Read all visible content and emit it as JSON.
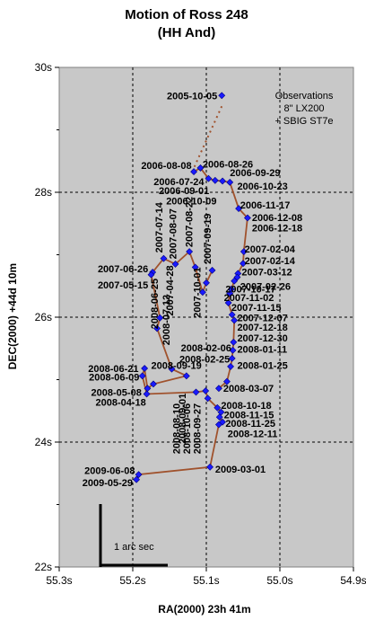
{
  "chart_data": {
    "type": "scatter",
    "title": [
      "Motion of Ross 248",
      "(HH And)"
    ],
    "xlabel": "RA(2000) 23h 41m",
    "ylabel": "DEC(2000) +44d 10m",
    "xlim": [
      55.3,
      54.9
    ],
    "ylim": [
      22,
      30
    ],
    "x_ticks": [
      55.3,
      55.2,
      55.1,
      55.0,
      54.9
    ],
    "x_tick_labels": [
      "55.3s",
      "55.2s",
      "55.1s",
      "55.0s",
      "54.9s"
    ],
    "y_ticks": [
      22,
      24,
      26,
      28,
      30
    ],
    "y_tick_labels": [
      "22s",
      "24s",
      "26s",
      "28s",
      "30s"
    ],
    "x_inverted": true,
    "grid": "dashed",
    "colors": {
      "plot_bg": "#c8c8c8",
      "point": "#1a1aff",
      "line": "#a0522d",
      "grid": "#000000"
    },
    "notes": [
      "Observations",
      "8\" LX200",
      "+ SBIG ST7e"
    ],
    "scale_bar_label": "1 arc sec",
    "series": [
      {
        "points": [
          {
            "x": 55.079,
            "y": 29.55
          },
          {
            "x": 55.117,
            "y": 28.33
          },
          {
            "x": 55.108,
            "y": 28.39
          },
          {
            "x": 55.097,
            "y": 28.22
          },
          {
            "x": 55.088,
            "y": 28.19
          },
          {
            "x": 55.078,
            "y": 28.18
          },
          {
            "x": 55.068,
            "y": 28.16
          },
          {
            "x": 55.056,
            "y": 27.74
          },
          {
            "x": 55.044,
            "y": 27.59
          },
          {
            "x": 55.049,
            "y": 27.05
          },
          {
            "x": 55.05,
            "y": 26.86
          },
          {
            "x": 55.057,
            "y": 26.7
          },
          {
            "x": 55.058,
            "y": 26.64
          },
          {
            "x": 55.062,
            "y": 26.58
          },
          {
            "x": 55.066,
            "y": 26.45
          },
          {
            "x": 55.068,
            "y": 26.38
          },
          {
            "x": 55.07,
            "y": 26.23
          },
          {
            "x": 55.065,
            "y": 26.04
          },
          {
            "x": 55.062,
            "y": 25.95
          },
          {
            "x": 55.063,
            "y": 25.6
          },
          {
            "x": 55.064,
            "y": 25.47
          },
          {
            "x": 55.065,
            "y": 25.34
          },
          {
            "x": 55.067,
            "y": 25.21
          },
          {
            "x": 55.072,
            "y": 24.97
          },
          {
            "x": 55.083,
            "y": 24.86
          }
        ]
      },
      {
        "points": [
          {
            "x": 55.092,
            "y": 26.75
          },
          {
            "x": 55.1,
            "y": 26.55
          },
          {
            "x": 55.105,
            "y": 26.4
          },
          {
            "x": 55.115,
            "y": 26.8
          },
          {
            "x": 55.123,
            "y": 27.05
          },
          {
            "x": 55.142,
            "y": 26.85
          },
          {
            "x": 55.158,
            "y": 26.94
          },
          {
            "x": 55.173,
            "y": 26.72
          },
          {
            "x": 55.175,
            "y": 26.68
          },
          {
            "x": 55.163,
            "y": 25.99
          },
          {
            "x": 55.167,
            "y": 25.82
          },
          {
            "x": 55.147,
            "y": 25.17
          },
          {
            "x": 55.127,
            "y": 25.06
          },
          {
            "x": 55.172,
            "y": 24.93
          },
          {
            "x": 55.18,
            "y": 24.86
          },
          {
            "x": 55.184,
            "y": 25.18
          },
          {
            "x": 55.187,
            "y": 25.06
          },
          {
            "x": 55.181,
            "y": 24.77
          },
          {
            "x": 55.114,
            "y": 24.8
          },
          {
            "x": 55.101,
            "y": 24.82
          },
          {
            "x": 55.098,
            "y": 24.7
          },
          {
            "x": 55.085,
            "y": 24.55
          },
          {
            "x": 55.08,
            "y": 24.48
          },
          {
            "x": 55.082,
            "y": 24.4
          },
          {
            "x": 55.078,
            "y": 24.32
          },
          {
            "x": 55.083,
            "y": 24.28
          },
          {
            "x": 55.095,
            "y": 23.6
          },
          {
            "x": 55.192,
            "y": 23.48
          },
          {
            "x": 55.195,
            "y": 23.4
          }
        ]
      }
    ],
    "annotations": [
      {
        "text": "2005-10-05",
        "x": 55.085,
        "y": 29.55,
        "anchor": "end",
        "rotate": 0
      },
      {
        "text": "2006-08-08",
        "x": 55.12,
        "y": 28.43,
        "anchor": "end",
        "rotate": 0
      },
      {
        "text": "2006-08-26",
        "x": 55.105,
        "y": 28.45,
        "anchor": "start",
        "rotate": 0
      },
      {
        "text": "2006-09-29",
        "x": 55.068,
        "y": 28.32,
        "anchor": "start",
        "rotate": 0
      },
      {
        "text": "2006-07-24",
        "x": 55.103,
        "y": 28.17,
        "anchor": "end",
        "rotate": 0
      },
      {
        "text": "2006-10-23",
        "x": 55.058,
        "y": 28.1,
        "anchor": "start",
        "rotate": 0
      },
      {
        "text": "2006-09-01",
        "x": 55.096,
        "y": 28.03,
        "anchor": "end",
        "rotate": 0
      },
      {
        "text": "2006-10-09",
        "x": 55.086,
        "y": 27.86,
        "anchor": "end",
        "rotate": 0
      },
      {
        "text": "2006-11-17",
        "x": 55.054,
        "y": 27.8,
        "anchor": "start",
        "rotate": 0
      },
      {
        "text": "2006-12-08",
        "x": 55.038,
        "y": 27.6,
        "anchor": "start",
        "rotate": 0
      },
      {
        "text": "2006-12-18",
        "x": 55.038,
        "y": 27.43,
        "anchor": "start",
        "rotate": 0
      },
      {
        "text": "2007-02-04",
        "x": 55.048,
        "y": 27.09,
        "anchor": "start",
        "rotate": 0
      },
      {
        "text": "2007-02-14",
        "x": 55.048,
        "y": 26.91,
        "anchor": "start",
        "rotate": 0
      },
      {
        "text": "2007-03-12",
        "x": 55.052,
        "y": 26.73,
        "anchor": "start",
        "rotate": 0
      },
      {
        "text": "2007-02-26",
        "x": 55.054,
        "y": 26.5,
        "anchor": "start",
        "rotate": 0
      },
      {
        "text": "2007-10-17",
        "x": 55.074,
        "y": 26.45,
        "anchor": "start",
        "rotate": 0
      },
      {
        "text": "2007-11-02",
        "x": 55.076,
        "y": 26.32,
        "anchor": "start",
        "rotate": 0
      },
      {
        "text": "2007-11-15",
        "x": 55.066,
        "y": 26.16,
        "anchor": "start",
        "rotate": 0
      },
      {
        "text": "2007-12-07",
        "x": 55.058,
        "y": 25.99,
        "anchor": "start",
        "rotate": 0
      },
      {
        "text": "2007-12-18",
        "x": 55.058,
        "y": 25.84,
        "anchor": "start",
        "rotate": 0
      },
      {
        "text": "2007-12-30",
        "x": 55.058,
        "y": 25.67,
        "anchor": "start",
        "rotate": 0
      },
      {
        "text": "2008-01-11",
        "x": 55.058,
        "y": 25.49,
        "anchor": "start",
        "rotate": 0
      },
      {
        "text": "2008-01-25",
        "x": 55.058,
        "y": 25.23,
        "anchor": "start",
        "rotate": 0
      },
      {
        "text": "2008-02-06",
        "x": 55.066,
        "y": 25.51,
        "anchor": "end",
        "rotate": 0
      },
      {
        "text": "2008-02-25",
        "x": 55.068,
        "y": 25.33,
        "anchor": "end",
        "rotate": 0
      },
      {
        "text": "2008-03-07",
        "x": 55.077,
        "y": 24.86,
        "anchor": "start",
        "rotate": 0
      },
      {
        "text": "2008-10-18",
        "x": 55.08,
        "y": 24.59,
        "anchor": "start",
        "rotate": 0
      },
      {
        "text": "2008-11-15",
        "x": 55.076,
        "y": 24.44,
        "anchor": "start",
        "rotate": 0
      },
      {
        "text": "2008-11-25",
        "x": 55.074,
        "y": 24.3,
        "anchor": "start",
        "rotate": 0
      },
      {
        "text": "2008-12-11",
        "x": 55.071,
        "y": 24.14,
        "anchor": "start",
        "rotate": 0
      },
      {
        "text": "2009-03-01",
        "x": 55.088,
        "y": 23.57,
        "anchor": "start",
        "rotate": 0
      },
      {
        "text": "2008-06-21",
        "x": 55.192,
        "y": 25.18,
        "anchor": "end",
        "rotate": 0
      },
      {
        "text": "2008-06-09",
        "x": 55.191,
        "y": 25.04,
        "anchor": "end",
        "rotate": 0
      },
      {
        "text": "2008-05-08",
        "x": 55.188,
        "y": 24.8,
        "anchor": "end",
        "rotate": 0
      },
      {
        "text": "2008-04-18",
        "x": 55.182,
        "y": 24.64,
        "anchor": "end",
        "rotate": 0
      },
      {
        "text": "2008-09-19",
        "x": 55.175,
        "y": 25.23,
        "anchor": "start",
        "rotate": 0
      },
      {
        "text": "2009-06-08",
        "x": 55.197,
        "y": 23.55,
        "anchor": "end",
        "rotate": 0
      },
      {
        "text": "2009-05-29",
        "x": 55.2,
        "y": 23.35,
        "anchor": "end",
        "rotate": 0
      },
      {
        "text": "2007-06-26",
        "x": 55.179,
        "y": 26.78,
        "anchor": "end",
        "rotate": 0
      },
      {
        "text": "2007-05-15",
        "x": 55.179,
        "y": 26.52,
        "anchor": "end",
        "rotate": 0
      },
      {
        "text": "2007-07-14",
        "x": 55.16,
        "y": 27.03,
        "anchor": "start",
        "rotate": -90
      },
      {
        "text": "2007-08-07",
        "x": 55.141,
        "y": 26.93,
        "anchor": "start",
        "rotate": -90
      },
      {
        "text": "2007-08-22",
        "x": 55.119,
        "y": 27.12,
        "anchor": "start",
        "rotate": -90
      },
      {
        "text": "2007-09-19",
        "x": 55.094,
        "y": 26.85,
        "anchor": "start",
        "rotate": -90
      },
      {
        "text": "2007-04-28",
        "x": 55.145,
        "y": 26.02,
        "anchor": "start",
        "rotate": -90
      },
      {
        "text": "2007-10-01",
        "x": 55.108,
        "y": 25.99,
        "anchor": "start",
        "rotate": -90
      },
      {
        "text": "2008-06-25",
        "x": 55.166,
        "y": 25.81,
        "anchor": "start",
        "rotate": -90
      },
      {
        "text": "2008-07-12",
        "x": 55.15,
        "y": 25.55,
        "anchor": "start",
        "rotate": -90
      },
      {
        "text": "2008-09-01",
        "x": 55.128,
        "y": 24.78,
        "anchor": "end",
        "rotate": -90
      },
      {
        "text": "2008-08-10",
        "x": 55.136,
        "y": 24.62,
        "anchor": "end",
        "rotate": -90
      },
      {
        "text": "2008-10-06",
        "x": 55.122,
        "y": 24.62,
        "anchor": "end",
        "rotate": -90
      },
      {
        "text": "2008-09-27",
        "x": 55.108,
        "y": 24.62,
        "anchor": "end",
        "rotate": -90
      }
    ]
  }
}
